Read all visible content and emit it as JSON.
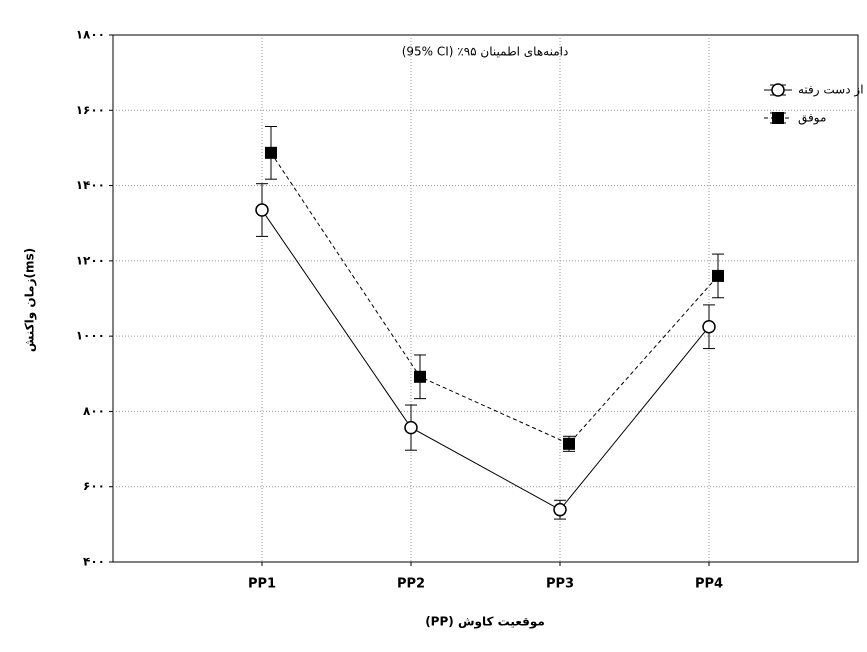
{
  "chart_data": {
    "type": "line",
    "title": "(95% CI) ٪دامنه‌های اطمینان ۹۵",
    "x_label": "(PP) موقعیت کاوش",
    "y_label": "زمان واکنش(ms)",
    "categories": [
      "PP1",
      "PP2",
      "PP3",
      "PP4"
    ],
    "series": [
      {
        "name": "از دست رفته",
        "color": "#000000",
        "marker": "circle",
        "linestyle": "solid",
        "values": [
          1335,
          757,
          539,
          1025
        ],
        "errors": [
          70,
          60,
          25,
          58
        ]
      },
      {
        "name": "موفق",
        "color": "#000000",
        "marker": "square",
        "linestyle": "dashed",
        "values": [
          1487,
          892,
          714,
          1160
        ],
        "errors": [
          70,
          58,
          20,
          58
        ]
      }
    ],
    "ylim": [
      400,
      1800
    ],
    "yticks": [
      {
        "value": 400,
        "label": "۴۰۰"
      },
      {
        "value": 600,
        "label": "۶۰۰"
      },
      {
        "value": 800,
        "label": "۸۰۰"
      },
      {
        "value": 1000,
        "label": "۱۰۰۰"
      },
      {
        "value": 1200,
        "label": "۱۲۰۰"
      },
      {
        "value": 1400,
        "label": "۱۴۰۰"
      },
      {
        "value": 1600,
        "label": "۱۶۰۰"
      },
      {
        "value": 1800,
        "label": "۱۸۰۰"
      }
    ],
    "grid": true,
    "legend": "upper right"
  }
}
